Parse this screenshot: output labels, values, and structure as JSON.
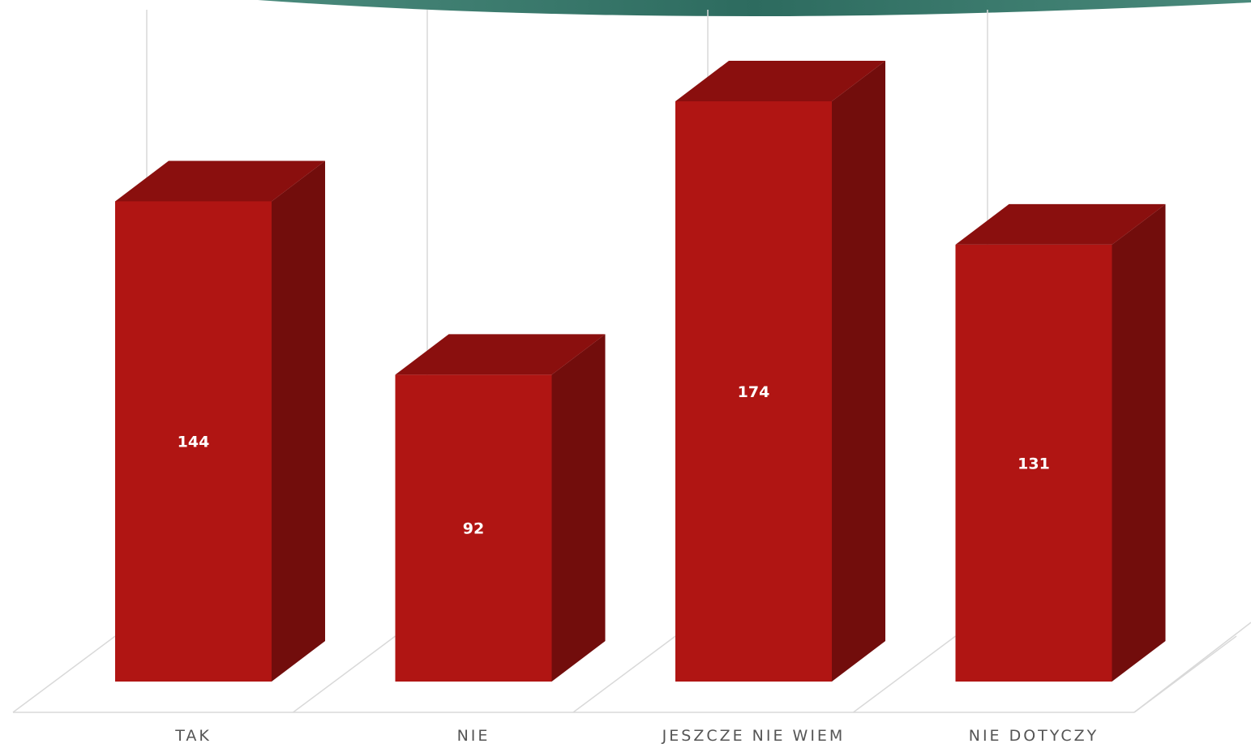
{
  "chart_data": {
    "type": "bar",
    "categories": [
      "TAK",
      "NIE",
      "JESZCZE NIE WIEM",
      "NIE DOTYCZY"
    ],
    "values": [
      144,
      92,
      174,
      131
    ],
    "title": "",
    "xlabel": "",
    "ylabel": "",
    "ylim": [
      0,
      190
    ],
    "grid": false,
    "legend": "none",
    "data_labels": true,
    "three_d": true
  },
  "colors": {
    "bar_front": "#b01513",
    "bar_top": "#8a0f0e",
    "bar_side": "#720d0c",
    "value_text": "#ffffff",
    "category_text": "#555555",
    "floor_lines": "#d9d9d9",
    "banner_dark": "#2d6b5f",
    "banner_light": "#4a8a7c"
  }
}
